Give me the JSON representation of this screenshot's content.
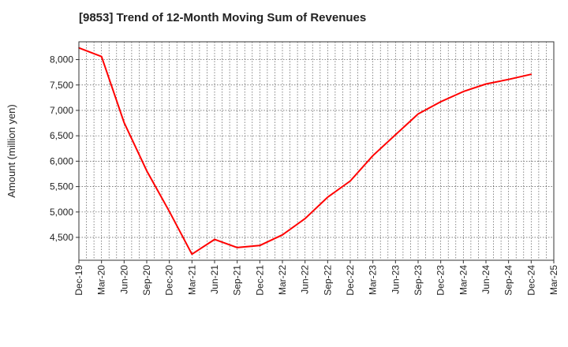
{
  "chart_data": {
    "type": "line",
    "title": "[9853]  Trend of 12-Month Moving Sum of Revenues",
    "xlabel": "",
    "ylabel": "Amount (million yen)",
    "ylim": [
      4050,
      8350
    ],
    "yticks": [
      4500,
      5000,
      5500,
      6000,
      6500,
      7000,
      7500,
      8000
    ],
    "ytick_labels": [
      "4,500",
      "5,000",
      "5,500",
      "6,000",
      "6,500",
      "7,000",
      "7,500",
      "8,000"
    ],
    "xticks": [
      "Dec-19",
      "Mar-20",
      "Jun-20",
      "Sep-20",
      "Dec-20",
      "Mar-21",
      "Jun-21",
      "Sep-21",
      "Dec-21",
      "Mar-22",
      "Jun-22",
      "Sep-22",
      "Dec-22",
      "Mar-23",
      "Jun-23",
      "Sep-23",
      "Dec-23",
      "Mar-24",
      "Jun-24",
      "Sep-24",
      "Dec-24",
      "Mar-25"
    ],
    "grid": true,
    "series": [
      {
        "color": "#ff0000",
        "x": [
          "Dec-19",
          "Mar-20",
          "Jun-20",
          "Sep-20",
          "Dec-20",
          "Mar-21",
          "Jun-21",
          "Sep-21",
          "Dec-21",
          "Mar-22",
          "Jun-22",
          "Sep-22",
          "Dec-22",
          "Mar-23",
          "Jun-23",
          "Sep-23",
          "Dec-23",
          "Mar-24",
          "Jun-24",
          "Sep-24",
          "Dec-24"
        ],
        "values": [
          8230,
          8060,
          6760,
          5810,
          5010,
          4170,
          4460,
          4300,
          4340,
          4550,
          4870,
          5290,
          5610,
          6110,
          6520,
          6930,
          7170,
          7370,
          7520,
          7610,
          7710
        ]
      }
    ]
  }
}
